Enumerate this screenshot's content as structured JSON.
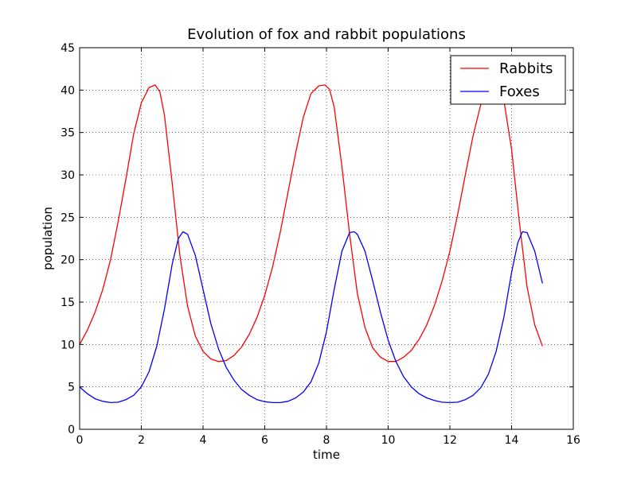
{
  "chart_data": {
    "type": "line",
    "title": "Evolution of fox and rabbit populations",
    "xlabel": "time",
    "ylabel": "population",
    "xlim": [
      0,
      16
    ],
    "ylim": [
      0,
      45
    ],
    "xticks": [
      0,
      2,
      4,
      6,
      8,
      10,
      12,
      14,
      16
    ],
    "yticks": [
      0,
      5,
      10,
      15,
      20,
      25,
      30,
      35,
      40,
      45
    ],
    "grid": true,
    "legend_position": "top-right",
    "series": [
      {
        "name": "Rabbits",
        "color": "#ff0000",
        "x": [
          0,
          0.25,
          0.5,
          0.75,
          1.0,
          1.25,
          1.5,
          1.75,
          2.0,
          2.25,
          2.45,
          2.6,
          2.75,
          3.0,
          3.25,
          3.5,
          3.75,
          4.0,
          4.25,
          4.5,
          4.75,
          5.0,
          5.25,
          5.5,
          5.75,
          6.0,
          6.25,
          6.5,
          6.75,
          7.0,
          7.25,
          7.5,
          7.75,
          7.95,
          8.1,
          8.25,
          8.5,
          8.75,
          9.0,
          9.25,
          9.5,
          9.75,
          10.0,
          10.25,
          10.5,
          10.75,
          11.0,
          11.25,
          11.5,
          11.75,
          12.0,
          12.25,
          12.5,
          12.75,
          13.0,
          13.25,
          13.45,
          13.6,
          13.75,
          14.0,
          14.25,
          14.5,
          14.75,
          15.0
        ],
        "values": [
          10.0,
          11.7,
          13.8,
          16.5,
          20.0,
          24.5,
          29.5,
          34.8,
          38.5,
          40.3,
          40.6,
          39.8,
          37.0,
          29.0,
          20.5,
          14.5,
          11.0,
          9.2,
          8.3,
          8.0,
          8.1,
          8.7,
          9.7,
          11.2,
          13.2,
          15.8,
          19.1,
          23.2,
          27.9,
          32.6,
          36.8,
          39.6,
          40.5,
          40.6,
          40.1,
          38.0,
          31.0,
          23.0,
          16.0,
          12.0,
          9.6,
          8.5,
          8.0,
          8.0,
          8.5,
          9.3,
          10.6,
          12.3,
          14.6,
          17.5,
          21.0,
          25.3,
          30.0,
          34.6,
          38.3,
          40.2,
          40.6,
          40.1,
          38.8,
          33.0,
          24.5,
          16.8,
          12.3,
          9.8
        ]
      },
      {
        "name": "Foxes",
        "color": "#0000ff",
        "x": [
          0,
          0.25,
          0.5,
          0.75,
          1.0,
          1.25,
          1.5,
          1.75,
          2.0,
          2.25,
          2.5,
          2.75,
          3.0,
          3.2,
          3.35,
          3.5,
          3.75,
          4.0,
          4.25,
          4.5,
          4.75,
          5.0,
          5.25,
          5.5,
          5.75,
          6.0,
          6.25,
          6.5,
          6.75,
          7.0,
          7.25,
          7.5,
          7.75,
          8.0,
          8.25,
          8.5,
          8.75,
          8.9,
          9.0,
          9.25,
          9.5,
          9.75,
          10.0,
          10.25,
          10.5,
          10.75,
          11.0,
          11.25,
          11.5,
          11.75,
          12.0,
          12.25,
          12.5,
          12.75,
          13.0,
          13.25,
          13.5,
          13.75,
          14.0,
          14.2,
          14.35,
          14.5,
          14.75,
          15.0
        ],
        "values": [
          5.0,
          4.2,
          3.6,
          3.3,
          3.15,
          3.2,
          3.5,
          4.0,
          5.0,
          6.8,
          9.8,
          14.2,
          19.5,
          22.5,
          23.3,
          23.0,
          20.5,
          16.5,
          12.5,
          9.5,
          7.3,
          5.8,
          4.7,
          4.0,
          3.5,
          3.25,
          3.15,
          3.15,
          3.3,
          3.7,
          4.4,
          5.6,
          7.8,
          11.5,
          16.5,
          21.0,
          23.2,
          23.3,
          23.0,
          21.0,
          17.5,
          13.8,
          10.5,
          8.0,
          6.2,
          5.0,
          4.2,
          3.7,
          3.4,
          3.2,
          3.15,
          3.2,
          3.5,
          4.0,
          4.9,
          6.5,
          9.2,
          13.2,
          18.5,
          22.0,
          23.3,
          23.2,
          21.0,
          17.2
        ]
      }
    ]
  }
}
